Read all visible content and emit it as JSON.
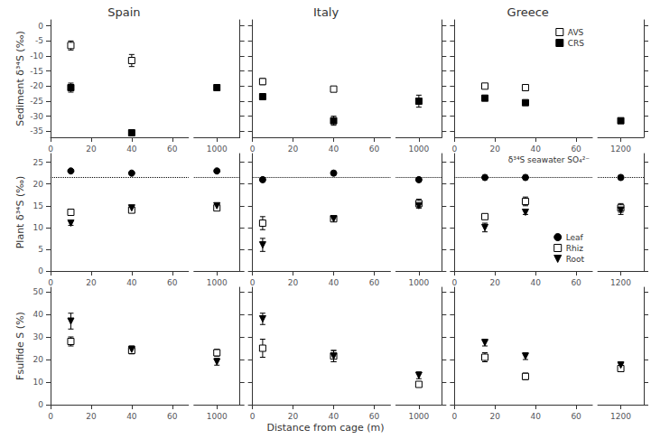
{
  "xlabel": "Distance from cage (m)",
  "chart_data": [
    {
      "type": "scatter",
      "title": "Spain",
      "ylabel": "Sediment δ³⁴S (‰)",
      "xlim": [
        0,
        68
      ],
      "xticks": [
        0,
        20,
        40,
        60
      ],
      "ylim": [
        -37,
        2
      ],
      "yticks": [
        0,
        -5,
        -10,
        -15,
        -20,
        -25,
        -30,
        -35
      ],
      "series": [
        {
          "name": "AVS",
          "marker": "square",
          "color": "#ffffff",
          "x": [
            10,
            40
          ],
          "values": [
            -6.5,
            -11.5
          ],
          "errors": [
            1.5,
            2.0
          ]
        },
        {
          "name": "CRS",
          "marker": "square",
          "color": "#000000",
          "x": [
            10,
            40
          ],
          "values": [
            -20.5,
            -35.5
          ],
          "errors": [
            1.5,
            0.3
          ]
        }
      ]
    },
    {
      "type": "scatter",
      "tick_labels": "x",
      "xlim": [
        900,
        1100
      ],
      "xticks": [
        1000
      ],
      "ylim": [
        -37,
        2
      ],
      "yticks": [
        0,
        -5,
        -10,
        -15,
        -20,
        -25,
        -30,
        -35
      ],
      "series": [
        {
          "name": "AVS",
          "marker": "square",
          "color": "#ffffff",
          "x": [
            1000
          ],
          "values": [
            null
          ],
          "errors": [
            null
          ]
        },
        {
          "name": "CRS",
          "marker": "square",
          "color": "#000000",
          "x": [
            1000
          ],
          "values": [
            -20.5
          ],
          "errors": [
            0.5
          ]
        }
      ]
    },
    {
      "type": "scatter",
      "title": "Italy",
      "tick_labels": "x",
      "xlim": [
        0,
        68
      ],
      "xticks": [
        0,
        20,
        40,
        60
      ],
      "ylim": [
        -37,
        2
      ],
      "yticks": [
        0,
        -5,
        -10,
        -15,
        -20,
        -25,
        -30,
        -35
      ],
      "series": [
        {
          "name": "AVS",
          "marker": "square",
          "color": "#ffffff",
          "x": [
            5,
            40
          ],
          "values": [
            -18.5,
            -21.0
          ],
          "errors": [
            1.0,
            0.5
          ]
        },
        {
          "name": "CRS",
          "marker": "square",
          "color": "#000000",
          "x": [
            5,
            40
          ],
          "values": [
            -23.5,
            -31.5
          ],
          "errors": [
            0.5,
            1.5
          ]
        }
      ]
    },
    {
      "type": "scatter",
      "tick_labels": "x",
      "xlim": [
        900,
        1100
      ],
      "xticks": [
        1000
      ],
      "ylim": [
        -37,
        2
      ],
      "yticks": [
        0,
        -5,
        -10,
        -15,
        -20,
        -25,
        -30,
        -35
      ],
      "series": [
        {
          "name": "AVS",
          "marker": "square",
          "color": "#ffffff",
          "x": [
            1000
          ],
          "values": [
            null
          ],
          "errors": [
            null
          ]
        },
        {
          "name": "CRS",
          "marker": "square",
          "color": "#000000",
          "x": [
            1000
          ],
          "values": [
            -25.0
          ],
          "errors": [
            2.0
          ]
        }
      ]
    },
    {
      "type": "scatter",
      "title": "Greece",
      "tick_labels": "x",
      "legend": "upper right",
      "xlim": [
        0,
        68
      ],
      "xticks": [
        0,
        20,
        40,
        60
      ],
      "ylim": [
        -37,
        2
      ],
      "yticks": [
        0,
        -5,
        -10,
        -15,
        -20,
        -25,
        -30,
        -35
      ],
      "series": [
        {
          "name": "AVS",
          "marker": "square",
          "color": "#ffffff",
          "x": [
            15,
            35
          ],
          "values": [
            -20.0,
            -20.5
          ],
          "errors": [
            0.5,
            0.5
          ]
        },
        {
          "name": "CRS",
          "marker": "square",
          "color": "#000000",
          "x": [
            15,
            35
          ],
          "values": [
            -24.0,
            -25.5
          ],
          "errors": [
            0.5,
            0.5
          ]
        }
      ]
    },
    {
      "type": "scatter",
      "tick_labels": "x",
      "xlim": [
        1100,
        1300
      ],
      "xticks": [
        1200
      ],
      "ylim": [
        -37,
        2
      ],
      "yticks": [
        0,
        -5,
        -10,
        -15,
        -20,
        -25,
        -30,
        -35
      ],
      "series": [
        {
          "name": "AVS",
          "marker": "square",
          "color": "#ffffff",
          "x": [
            1200
          ],
          "values": [
            null
          ],
          "errors": [
            null
          ]
        },
        {
          "name": "CRS",
          "marker": "square",
          "color": "#000000",
          "x": [
            1200
          ],
          "values": [
            -31.5
          ],
          "errors": [
            0.5
          ]
        }
      ]
    },
    {
      "type": "scatter",
      "ylabel": "Plant δ³⁴S (‰)",
      "xlim": [
        0,
        68
      ],
      "xticks": [
        0,
        20,
        40,
        60
      ],
      "ylim": [
        0,
        27
      ],
      "yticks": [
        0,
        5,
        10,
        15,
        20,
        25
      ],
      "series": [
        {
          "type": "hline",
          "line_style": "dotted",
          "values": [
            21.5
          ]
        },
        {
          "name": "Leaf",
          "marker": "circle",
          "color": "#000000",
          "x": [
            10,
            40
          ],
          "values": [
            23.0,
            22.5
          ],
          "errors": [
            0.3,
            0.3
          ]
        },
        {
          "name": "Rhiz",
          "marker": "square",
          "color": "#ffffff",
          "x": [
            10,
            40
          ],
          "values": [
            13.5,
            14.0
          ],
          "errors": [
            0.5,
            0.5
          ]
        },
        {
          "name": "Root",
          "marker": "triangle_down",
          "color": "#000000",
          "x": [
            10,
            40
          ],
          "values": [
            11.0,
            14.5
          ],
          "errors": [
            0.5,
            0.5
          ]
        }
      ]
    },
    {
      "type": "scatter",
      "tick_labels": "x",
      "xlim": [
        900,
        1100
      ],
      "xticks": [
        1000
      ],
      "ylim": [
        0,
        27
      ],
      "yticks": [
        0,
        5,
        10,
        15,
        20,
        25
      ],
      "series": [
        {
          "type": "hline",
          "line_style": "dotted",
          "values": [
            21.5
          ]
        },
        {
          "name": "Leaf",
          "marker": "circle",
          "color": "#000000",
          "x": [
            1000
          ],
          "values": [
            23.0
          ],
          "errors": [
            0.3
          ]
        },
        {
          "name": "Rhiz",
          "marker": "square",
          "color": "#ffffff",
          "x": [
            1000
          ],
          "values": [
            14.5
          ],
          "errors": [
            0.5
          ]
        },
        {
          "name": "Root",
          "marker": "triangle_down",
          "color": "#000000",
          "x": [
            1000
          ],
          "values": [
            15.0
          ],
          "errors": [
            0.5
          ]
        }
      ]
    },
    {
      "type": "scatter",
      "tick_labels": "x",
      "xlim": [
        0,
        68
      ],
      "xticks": [
        0,
        20,
        40,
        60
      ],
      "ylim": [
        0,
        27
      ],
      "yticks": [
        0,
        5,
        10,
        15,
        20,
        25
      ],
      "series": [
        {
          "type": "hline",
          "line_style": "dotted",
          "values": [
            21.5
          ]
        },
        {
          "name": "Leaf",
          "marker": "circle",
          "color": "#000000",
          "x": [
            5,
            40
          ],
          "values": [
            21.0,
            22.5
          ],
          "errors": [
            0.5,
            0.5
          ]
        },
        {
          "name": "Rhiz",
          "marker": "square",
          "color": "#ffffff",
          "x": [
            5,
            40
          ],
          "values": [
            11.0,
            12.0
          ],
          "errors": [
            1.5,
            0.5
          ]
        },
        {
          "name": "Root",
          "marker": "triangle_down",
          "color": "#000000",
          "x": [
            5,
            40
          ],
          "values": [
            6.0,
            12.0
          ],
          "errors": [
            1.5,
            0.5
          ]
        }
      ]
    },
    {
      "type": "scatter",
      "tick_labels": "x",
      "xlim": [
        900,
        1100
      ],
      "xticks": [
        1000
      ],
      "ylim": [
        0,
        27
      ],
      "yticks": [
        0,
        5,
        10,
        15,
        20,
        25
      ],
      "series": [
        {
          "type": "hline",
          "line_style": "dotted",
          "values": [
            21.5
          ]
        },
        {
          "name": "Leaf",
          "marker": "circle",
          "color": "#000000",
          "x": [
            1000
          ],
          "values": [
            21.0
          ],
          "errors": [
            0.5
          ]
        },
        {
          "name": "Rhiz",
          "marker": "square",
          "color": "#ffffff",
          "x": [
            1000
          ],
          "values": [
            15.5
          ],
          "errors": [
            1.0
          ]
        },
        {
          "name": "Root",
          "marker": "triangle_down",
          "color": "#000000",
          "x": [
            1000
          ],
          "values": [
            15.0
          ],
          "errors": [
            0.5
          ]
        }
      ]
    },
    {
      "type": "scatter",
      "tick_labels": "x",
      "legend": "lower right",
      "annotations": [
        "δ³⁴S seawater SO₄²⁻"
      ],
      "xlim": [
        0,
        68
      ],
      "xticks": [
        0,
        20,
        40,
        60
      ],
      "ylim": [
        0,
        27
      ],
      "yticks": [
        0,
        5,
        10,
        15,
        20,
        25
      ],
      "series": [
        {
          "type": "hline",
          "line_style": "dotted",
          "values": [
            21.5
          ]
        },
        {
          "name": "Leaf",
          "marker": "circle",
          "color": "#000000",
          "x": [
            15,
            35
          ],
          "values": [
            21.5,
            21.5
          ],
          "errors": [
            0.5,
            0.5
          ]
        },
        {
          "name": "Rhiz",
          "marker": "square",
          "color": "#ffffff",
          "x": [
            15,
            35
          ],
          "values": [
            12.5,
            16.0
          ],
          "errors": [
            0.5,
            1.0
          ]
        },
        {
          "name": "Root",
          "marker": "triangle_down",
          "color": "#000000",
          "x": [
            15,
            35
          ],
          "values": [
            10.0,
            13.5
          ],
          "errors": [
            1.0,
            0.5
          ]
        }
      ]
    },
    {
      "type": "scatter",
      "tick_labels": "x",
      "xlim": [
        1100,
        1300
      ],
      "xticks": [
        1200
      ],
      "ylim": [
        0,
        27
      ],
      "yticks": [
        0,
        5,
        10,
        15,
        20,
        25
      ],
      "series": [
        {
          "type": "hline",
          "line_style": "dotted",
          "values": [
            21.5
          ]
        },
        {
          "name": "Leaf",
          "marker": "circle",
          "color": "#000000",
          "x": [
            1200
          ],
          "values": [
            21.5
          ],
          "errors": [
            0.5
          ]
        },
        {
          "name": "Rhiz",
          "marker": "square",
          "color": "#ffffff",
          "x": [
            1200
          ],
          "values": [
            14.5
          ],
          "errors": [
            1.0
          ]
        },
        {
          "name": "Root",
          "marker": "triangle_down",
          "color": "#000000",
          "x": [
            1200
          ],
          "values": [
            14.0
          ],
          "errors": [
            1.0
          ]
        }
      ]
    },
    {
      "type": "scatter",
      "ylabel": "Fsulfide S (%)",
      "xlim": [
        0,
        68
      ],
      "xticks": [
        0,
        20,
        40,
        60
      ],
      "ylim": [
        0,
        52
      ],
      "yticks": [
        0,
        10,
        20,
        30,
        40,
        50
      ],
      "series": [
        {
          "name": "Rhiz",
          "marker": "square",
          "color": "#ffffff",
          "x": [
            10,
            40
          ],
          "values": [
            28.0,
            24.0
          ],
          "errors": [
            2.0,
            1.5
          ]
        },
        {
          "name": "Root",
          "marker": "triangle_down",
          "color": "#000000",
          "x": [
            10,
            40
          ],
          "values": [
            37.0,
            24.5
          ],
          "errors": [
            3.5,
            1.5
          ]
        }
      ]
    },
    {
      "type": "scatter",
      "tick_labels": "x",
      "xlim": [
        900,
        1100
      ],
      "xticks": [
        1000
      ],
      "ylim": [
        0,
        52
      ],
      "yticks": [
        0,
        10,
        20,
        30,
        40,
        50
      ],
      "series": [
        {
          "name": "Rhiz",
          "marker": "square",
          "color": "#ffffff",
          "x": [
            1000
          ],
          "values": [
            23.0
          ],
          "errors": [
            1.5
          ]
        },
        {
          "name": "Root",
          "marker": "triangle_down",
          "color": "#000000",
          "x": [
            1000
          ],
          "values": [
            19.0
          ],
          "errors": [
            1.5
          ]
        }
      ]
    },
    {
      "type": "scatter",
      "tick_labels": "x",
      "xlim": [
        0,
        68
      ],
      "xticks": [
        0,
        20,
        40,
        60
      ],
      "ylim": [
        0,
        52
      ],
      "yticks": [
        0,
        10,
        20,
        30,
        40,
        50
      ],
      "series": [
        {
          "name": "Rhiz",
          "marker": "square",
          "color": "#ffffff",
          "x": [
            5,
            40
          ],
          "values": [
            25.0,
            21.5
          ],
          "errors": [
            4.0,
            2.5
          ]
        },
        {
          "name": "Root",
          "marker": "triangle_down",
          "color": "#000000",
          "x": [
            5,
            40
          ],
          "values": [
            38.0,
            21.5
          ],
          "errors": [
            2.5,
            2.5
          ]
        }
      ]
    },
    {
      "type": "scatter",
      "tick_labels": "x",
      "xlim": [
        900,
        1100
      ],
      "xticks": [
        1000
      ],
      "ylim": [
        0,
        52
      ],
      "yticks": [
        0,
        10,
        20,
        30,
        40,
        50
      ],
      "series": [
        {
          "name": "Rhiz",
          "marker": "square",
          "color": "#ffffff",
          "x": [
            1000
          ],
          "values": [
            9.0
          ],
          "errors": [
            1.0
          ]
        },
        {
          "name": "Root",
          "marker": "triangle_down",
          "color": "#000000",
          "x": [
            1000
          ],
          "values": [
            13.0
          ],
          "errors": [
            1.5
          ]
        }
      ]
    },
    {
      "type": "scatter",
      "tick_labels": "x",
      "xlim": [
        0,
        68
      ],
      "xticks": [
        0,
        20,
        40,
        60
      ],
      "ylim": [
        0,
        52
      ],
      "yticks": [
        0,
        10,
        20,
        30,
        40,
        50
      ],
      "series": [
        {
          "name": "Rhiz",
          "marker": "square",
          "color": "#ffffff",
          "x": [
            15,
            35
          ],
          "values": [
            21.0,
            12.5
          ],
          "errors": [
            2.0,
            1.5
          ]
        },
        {
          "name": "Root",
          "marker": "triangle_down",
          "color": "#000000",
          "x": [
            15,
            35
          ],
          "values": [
            27.5,
            21.5
          ],
          "errors": [
            1.5,
            1.5
          ]
        }
      ]
    },
    {
      "type": "scatter",
      "tick_labels": "x",
      "xlim": [
        1100,
        1300
      ],
      "xticks": [
        1200
      ],
      "ylim": [
        0,
        52
      ],
      "yticks": [
        0,
        10,
        20,
        30,
        40,
        50
      ],
      "series": [
        {
          "name": "Rhiz",
          "marker": "square",
          "color": "#ffffff",
          "x": [
            1200
          ],
          "values": [
            16.0
          ],
          "errors": [
            1.0
          ]
        },
        {
          "name": "Root",
          "marker": "triangle_down",
          "color": "#000000",
          "x": [
            1200
          ],
          "values": [
            17.5
          ],
          "errors": [
            1.5
          ]
        }
      ]
    }
  ]
}
